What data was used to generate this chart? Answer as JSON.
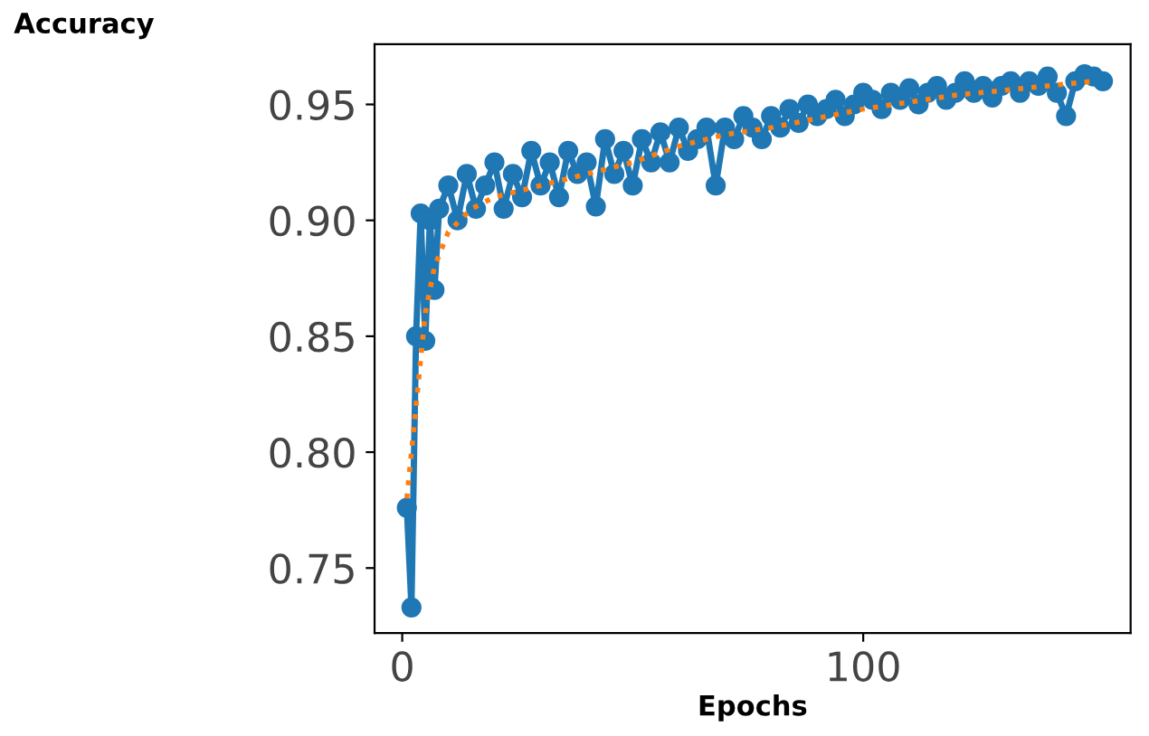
{
  "chart_data": {
    "type": "line",
    "xlabel": "Epochs",
    "ylabel": "Accuracy",
    "xlim": [
      -6,
      158
    ],
    "ylim": [
      0.722,
      0.976
    ],
    "xticks": [
      0,
      100
    ],
    "yticks": [
      0.75,
      {
        "value": 0.8,
        "label": "0.80"
      },
      0.85,
      {
        "value": 0.9,
        "label": "0.90"
      },
      0.95
    ],
    "grid": false,
    "legend": false,
    "marker": "circle",
    "series": [
      {
        "color": "#1f77b4",
        "x": [
          1,
          2,
          3,
          4,
          5,
          6,
          7,
          8,
          10,
          12,
          14,
          16,
          18,
          20,
          22,
          24,
          26,
          28,
          30,
          32,
          34,
          36,
          38,
          40,
          42,
          44,
          46,
          48,
          50,
          52,
          54,
          56,
          58,
          60,
          62,
          64,
          66,
          68,
          70,
          72,
          74,
          76,
          78,
          80,
          82,
          84,
          86,
          88,
          90,
          92,
          94,
          96,
          98,
          100,
          102,
          104,
          106,
          108,
          110,
          112,
          114,
          116,
          118,
          120,
          122,
          124,
          126,
          128,
          130,
          132,
          134,
          136,
          138,
          140,
          142,
          144,
          146,
          148,
          150,
          152
        ],
        "values": [
          0.776,
          0.733,
          0.85,
          0.903,
          0.848,
          0.9,
          0.87,
          0.905,
          0.915,
          0.9,
          0.92,
          0.905,
          0.915,
          0.925,
          0.905,
          0.92,
          0.91,
          0.93,
          0.915,
          0.925,
          0.91,
          0.93,
          0.92,
          0.925,
          0.906,
          0.935,
          0.92,
          0.93,
          0.915,
          0.935,
          0.925,
          0.938,
          0.925,
          0.94,
          0.93,
          0.935,
          0.94,
          0.915,
          0.94,
          0.935,
          0.945,
          0.94,
          0.935,
          0.945,
          0.94,
          0.948,
          0.942,
          0.95,
          0.945,
          0.948,
          0.952,
          0.945,
          0.95,
          0.955,
          0.952,
          0.948,
          0.955,
          0.952,
          0.957,
          0.95,
          0.955,
          0.958,
          0.952,
          0.955,
          0.96,
          0.955,
          0.958,
          0.953,
          0.958,
          0.96,
          0.955,
          0.96,
          0.958,
          0.962,
          0.955,
          0.945,
          0.96,
          0.963,
          0.962,
          0.96
        ]
      },
      {
        "type": "line",
        "color": "#ff7f0e",
        "line_style": "dotted",
        "marker": "none",
        "x": [
          1,
          3,
          5,
          7,
          10,
          15,
          20,
          30,
          40,
          50,
          60,
          70,
          80,
          90,
          100,
          110,
          120,
          130,
          140,
          150
        ],
        "values": [
          0.78,
          0.82,
          0.86,
          0.88,
          0.895,
          0.905,
          0.91,
          0.915,
          0.92,
          0.925,
          0.932,
          0.937,
          0.94,
          0.944,
          0.948,
          0.951,
          0.954,
          0.956,
          0.958,
          0.96
        ]
      }
    ]
  }
}
